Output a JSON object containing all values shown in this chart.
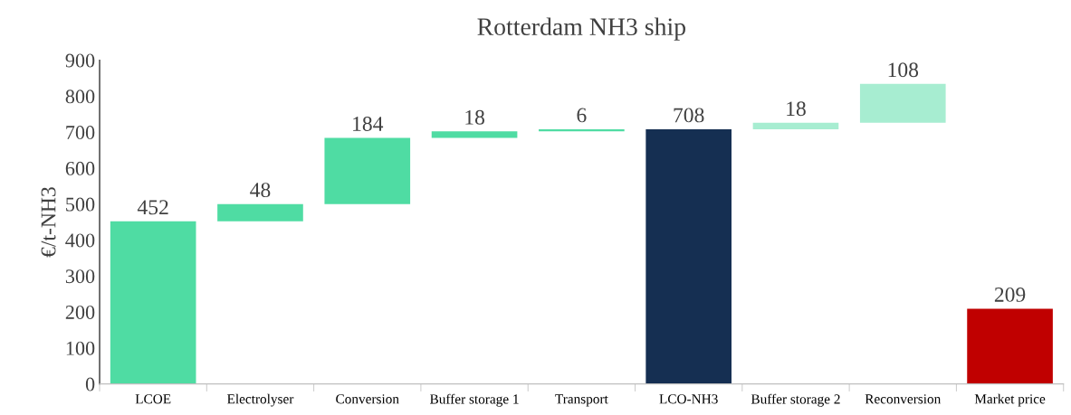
{
  "chart_data": {
    "type": "bar",
    "title": "Rotterdam NH3 ship",
    "ylabel": "€/t-NH3",
    "categories": [
      "LCOE",
      "Electrolyser",
      "Conversion",
      "Buffer storage 1",
      "Transport",
      "LCO-NH3",
      "Buffer storage 2",
      "Reconversion",
      "Market price"
    ],
    "base": [
      0,
      452,
      500,
      684,
      702,
      0,
      708,
      726,
      0
    ],
    "values": [
      452,
      48,
      184,
      18,
      6,
      708,
      18,
      108,
      209
    ],
    "value_labels": [
      "452",
      "48",
      "184",
      "18",
      "6",
      "708",
      "18",
      "108",
      "209"
    ],
    "colors": [
      "#4fdca3",
      "#4fdca3",
      "#4fdca3",
      "#4fdca3",
      "#4fdca3",
      "#152f52",
      "#a7edd1",
      "#a7edd1",
      "#c00000"
    ],
    "ylim": [
      0,
      900
    ],
    "yticks": [
      0,
      100,
      200,
      300,
      400,
      500,
      600,
      700,
      800,
      900
    ],
    "grid": false
  }
}
